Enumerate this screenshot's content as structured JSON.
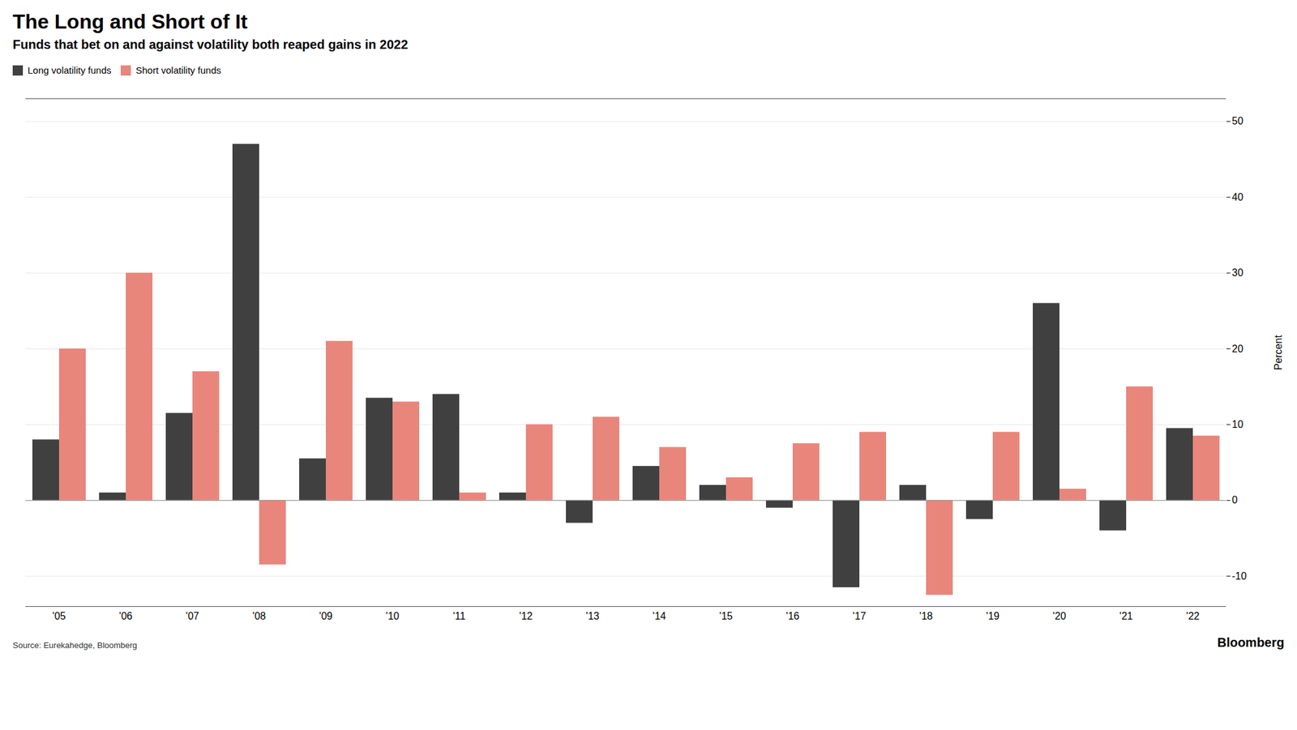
{
  "chart_data": {
    "type": "bar",
    "title": "The Long and Short of It",
    "subtitle": "Funds that bet on and against volatility both reaped gains in 2022",
    "source": "Source: Eurekahedge, Bloomberg",
    "annotations": [
      "Bloomberg"
    ],
    "categories": [
      "'05",
      "'06",
      "'07",
      "'08",
      "'09",
      "'10",
      "'11",
      "'12",
      "'13",
      "'14",
      "'15",
      "'16",
      "'17",
      "'18",
      "'19",
      "'20",
      "'21",
      "'22"
    ],
    "series": [
      {
        "name": "Long volatility funds",
        "color": "#404040",
        "values": [
          8.0,
          1.0,
          11.5,
          47.0,
          5.5,
          13.5,
          14.0,
          1.0,
          -3.0,
          4.5,
          2.0,
          -1.0,
          -11.5,
          2.0,
          -2.5,
          26.0,
          -4.0,
          9.5
        ]
      },
      {
        "name": "Short volatility funds",
        "color": "#e8867c",
        "values": [
          20.0,
          30.0,
          17.0,
          -8.5,
          21.0,
          13.0,
          1.0,
          10.0,
          11.0,
          7.0,
          3.0,
          7.5,
          9.0,
          -12.5,
          9.0,
          1.5,
          15.0,
          8.5
        ]
      }
    ],
    "ylabel": "Percent",
    "ylim": [
      -14,
      53
    ],
    "yticks": [
      -10,
      0,
      10,
      20,
      30,
      40,
      50
    ],
    "grid": true,
    "legend": "top-left"
  }
}
